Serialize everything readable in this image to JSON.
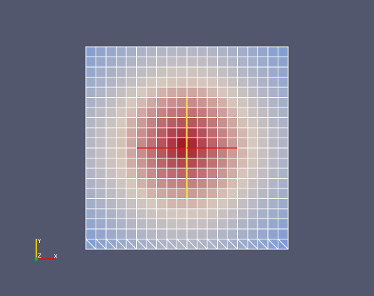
{
  "scene": {
    "background": "#52576e",
    "grid_cells": 20,
    "scalar_center_color": "#a10d1e",
    "scalar_edge_color": "#7b9ad2",
    "mid_color": "#d7c8bd",
    "mesh_line_color": "#ffffff",
    "bottom_row_style": "triangulated",
    "crosshair_horizontal_color": "#dd1111",
    "crosshair_vertical_color": "#e6c400"
  },
  "orientation_axes": {
    "y_label": "Y",
    "z_label": "Z",
    "x_label": "X",
    "y_color": "#e6c400",
    "z_color": "#22aa44",
    "x_color": "#dd1111"
  }
}
